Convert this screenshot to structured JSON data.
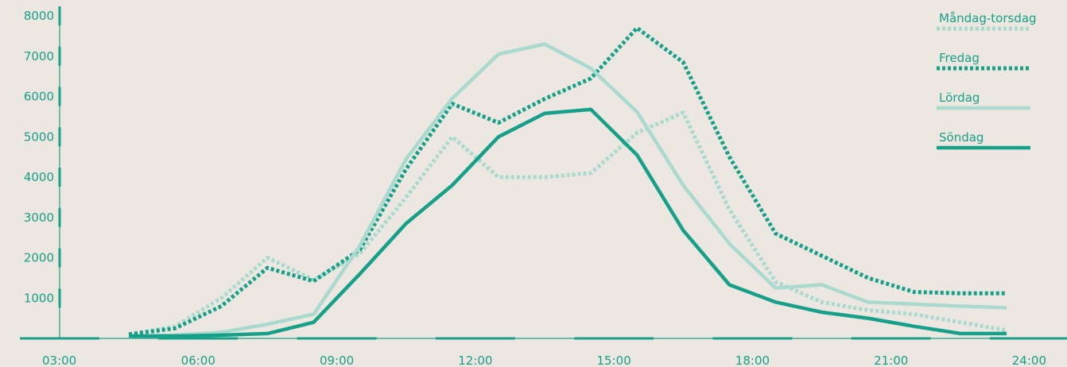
{
  "chart_data": {
    "type": "line",
    "title": "",
    "xlabel": "",
    "ylabel": "",
    "x_ticks": [
      "03:00",
      "06:00",
      "09:00",
      "12:00",
      "15:00",
      "18:00",
      "21:00",
      "24:00"
    ],
    "y_ticks": [
      1000,
      2000,
      3000,
      4000,
      5000,
      6000,
      7000,
      8000
    ],
    "xlim": [
      3,
      24
    ],
    "ylim": [
      0,
      8000
    ],
    "grid": false,
    "legend_position": "top-right",
    "x": [
      4.5,
      5.5,
      6.5,
      7.5,
      8.5,
      9.5,
      10.5,
      11.5,
      12.5,
      13.5,
      14.5,
      15.5,
      16.5,
      17.5,
      18.5,
      19.5,
      20.5,
      21.5,
      22.5,
      23.5
    ],
    "series": [
      {
        "name": "Måndag-torsdag",
        "color": "#a9d9cf",
        "style": "dotted",
        "values": [
          100,
          300,
          1000,
          2000,
          1450,
          2100,
          3500,
          5000,
          4000,
          4000,
          4100,
          5100,
          5600,
          3200,
          1400,
          900,
          700,
          600,
          400,
          200
        ]
      },
      {
        "name": "Fredag",
        "color": "#17a089",
        "style": "dotted",
        "values": [
          100,
          250,
          800,
          1750,
          1420,
          2200,
          4200,
          5820,
          5350,
          5940,
          6450,
          7700,
          6850,
          4500,
          2600,
          2050,
          1500,
          1150,
          1120,
          1120
        ]
      },
      {
        "name": "Lördag",
        "color": "#a9d9cf",
        "style": "solid",
        "values": [
          50,
          80,
          150,
          350,
          600,
          2300,
          4450,
          5950,
          7050,
          7300,
          6700,
          5620,
          3800,
          2350,
          1250,
          1330,
          900,
          850,
          800,
          760
        ]
      },
      {
        "name": "Söndag",
        "color": "#17a089",
        "style": "solid",
        "values": [
          60,
          60,
          80,
          120,
          400,
          1600,
          2850,
          3800,
          5000,
          5580,
          5680,
          4550,
          2680,
          1330,
          900,
          650,
          500,
          300,
          120,
          120
        ]
      }
    ]
  }
}
